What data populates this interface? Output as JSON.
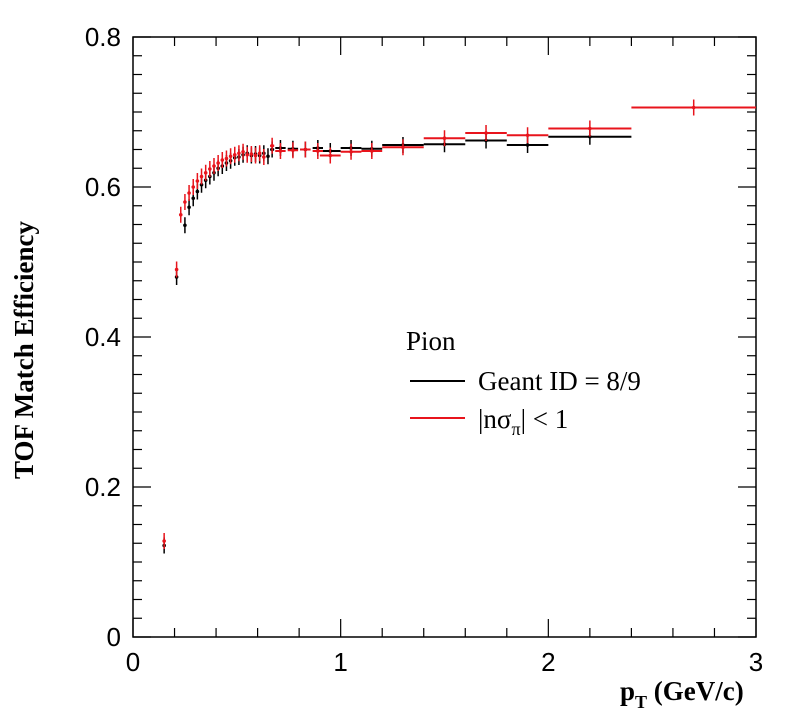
{
  "chart_data": {
    "type": "scatter",
    "xlabel": "p",
    "xlabel_sub": "T",
    "xlabel_unit": "(GeV/c)",
    "ylabel": "TOF Match Efficiency",
    "xlim": [
      0,
      3
    ],
    "ylim": [
      0,
      0.8
    ],
    "x_ticks": [
      "0",
      "1",
      "2",
      "3"
    ],
    "y_ticks": [
      "0",
      "0.2",
      "0.4",
      "0.6",
      "0.8"
    ],
    "legend": {
      "title": "Pion",
      "placement": "center-right",
      "entries": [
        "Geant ID = 8/9",
        "|nσπ| < 1"
      ]
    },
    "series": [
      {
        "name": "Geant ID = 8/9",
        "color": "#000000",
        "points": [
          {
            "x": 0.15,
            "y": 0.122,
            "xerr": 0.005
          },
          {
            "x": 0.21,
            "y": 0.48,
            "xerr": 0.005
          },
          {
            "x": 0.25,
            "y": 0.549,
            "xerr": 0.005
          },
          {
            "x": 0.27,
            "y": 0.573,
            "xerr": 0.005
          },
          {
            "x": 0.29,
            "y": 0.585,
            "xerr": 0.005
          },
          {
            "x": 0.31,
            "y": 0.594,
            "xerr": 0.005
          },
          {
            "x": 0.33,
            "y": 0.603,
            "xerr": 0.005
          },
          {
            "x": 0.35,
            "y": 0.609,
            "xerr": 0.005
          },
          {
            "x": 0.37,
            "y": 0.614,
            "xerr": 0.005
          },
          {
            "x": 0.39,
            "y": 0.619,
            "xerr": 0.005
          },
          {
            "x": 0.41,
            "y": 0.625,
            "xerr": 0.005
          },
          {
            "x": 0.43,
            "y": 0.628,
            "xerr": 0.005
          },
          {
            "x": 0.45,
            "y": 0.632,
            "xerr": 0.005
          },
          {
            "x": 0.47,
            "y": 0.635,
            "xerr": 0.005
          },
          {
            "x": 0.49,
            "y": 0.639,
            "xerr": 0.005
          },
          {
            "x": 0.51,
            "y": 0.64,
            "xerr": 0.005
          },
          {
            "x": 0.53,
            "y": 0.643,
            "xerr": 0.005
          },
          {
            "x": 0.55,
            "y": 0.645,
            "xerr": 0.005
          },
          {
            "x": 0.57,
            "y": 0.642,
            "xerr": 0.005
          },
          {
            "x": 0.59,
            "y": 0.644,
            "xerr": 0.005
          },
          {
            "x": 0.61,
            "y": 0.642,
            "xerr": 0.005
          },
          {
            "x": 0.63,
            "y": 0.645,
            "xerr": 0.005
          },
          {
            "x": 0.65,
            "y": 0.641,
            "xerr": 0.005
          },
          {
            "x": 0.67,
            "y": 0.65,
            "xerr": 0.01
          },
          {
            "x": 0.71,
            "y": 0.652,
            "xerr": 0.025
          },
          {
            "x": 0.77,
            "y": 0.651,
            "xerr": 0.025
          },
          {
            "x": 0.83,
            "y": 0.65,
            "xerr": 0.025
          },
          {
            "x": 0.89,
            "y": 0.652,
            "xerr": 0.025
          },
          {
            "x": 0.95,
            "y": 0.648,
            "xerr": 0.05
          },
          {
            "x": 1.05,
            "y": 0.652,
            "xerr": 0.05
          },
          {
            "x": 1.15,
            "y": 0.651,
            "xerr": 0.05
          },
          {
            "x": 1.3,
            "y": 0.656,
            "xerr": 0.1
          },
          {
            "x": 1.5,
            "y": 0.657,
            "xerr": 0.1
          },
          {
            "x": 1.7,
            "y": 0.662,
            "xerr": 0.1
          },
          {
            "x": 1.9,
            "y": 0.656,
            "xerr": 0.1
          },
          {
            "x": 2.2,
            "y": 0.667,
            "xerr": 0.2
          }
        ]
      },
      {
        "name": "|nσπ| < 1",
        "color": "#e8141c",
        "points": [
          {
            "x": 0.15,
            "y": 0.128,
            "xerr": 0.005
          },
          {
            "x": 0.21,
            "y": 0.49,
            "xerr": 0.005
          },
          {
            "x": 0.23,
            "y": 0.563,
            "xerr": 0.005
          },
          {
            "x": 0.25,
            "y": 0.58,
            "xerr": 0.005
          },
          {
            "x": 0.27,
            "y": 0.592,
            "xerr": 0.005
          },
          {
            "x": 0.29,
            "y": 0.6,
            "xerr": 0.005
          },
          {
            "x": 0.31,
            "y": 0.608,
            "xerr": 0.005
          },
          {
            "x": 0.33,
            "y": 0.614,
            "xerr": 0.005
          },
          {
            "x": 0.35,
            "y": 0.619,
            "xerr": 0.005
          },
          {
            "x": 0.37,
            "y": 0.624,
            "xerr": 0.005
          },
          {
            "x": 0.39,
            "y": 0.628,
            "xerr": 0.005
          },
          {
            "x": 0.41,
            "y": 0.632,
            "xerr": 0.005
          },
          {
            "x": 0.43,
            "y": 0.636,
            "xerr": 0.005
          },
          {
            "x": 0.45,
            "y": 0.638,
            "xerr": 0.005
          },
          {
            "x": 0.47,
            "y": 0.641,
            "xerr": 0.005
          },
          {
            "x": 0.49,
            "y": 0.643,
            "xerr": 0.005
          },
          {
            "x": 0.51,
            "y": 0.645,
            "xerr": 0.005
          },
          {
            "x": 0.53,
            "y": 0.647,
            "xerr": 0.005
          },
          {
            "x": 0.55,
            "y": 0.643,
            "xerr": 0.005
          },
          {
            "x": 0.57,
            "y": 0.644,
            "xerr": 0.005
          },
          {
            "x": 0.59,
            "y": 0.642,
            "xerr": 0.005
          },
          {
            "x": 0.61,
            "y": 0.645,
            "xerr": 0.005
          },
          {
            "x": 0.63,
            "y": 0.64,
            "xerr": 0.005
          },
          {
            "x": 0.67,
            "y": 0.655,
            "xerr": 0.01
          },
          {
            "x": 0.71,
            "y": 0.648,
            "xerr": 0.025
          },
          {
            "x": 0.77,
            "y": 0.649,
            "xerr": 0.025
          },
          {
            "x": 0.83,
            "y": 0.65,
            "xerr": 0.025
          },
          {
            "x": 0.89,
            "y": 0.648,
            "xerr": 0.025
          },
          {
            "x": 0.95,
            "y": 0.642,
            "xerr": 0.05
          },
          {
            "x": 1.05,
            "y": 0.647,
            "xerr": 0.05
          },
          {
            "x": 1.15,
            "y": 0.648,
            "xerr": 0.05
          },
          {
            "x": 1.3,
            "y": 0.653,
            "xerr": 0.1
          },
          {
            "x": 1.5,
            "y": 0.665,
            "xerr": 0.1
          },
          {
            "x": 1.7,
            "y": 0.672,
            "xerr": 0.1
          },
          {
            "x": 1.9,
            "y": 0.669,
            "xerr": 0.1
          },
          {
            "x": 2.2,
            "y": 0.678,
            "xerr": 0.2
          },
          {
            "x": 2.7,
            "y": 0.706,
            "xerr": 0.3
          }
        ]
      }
    ]
  }
}
